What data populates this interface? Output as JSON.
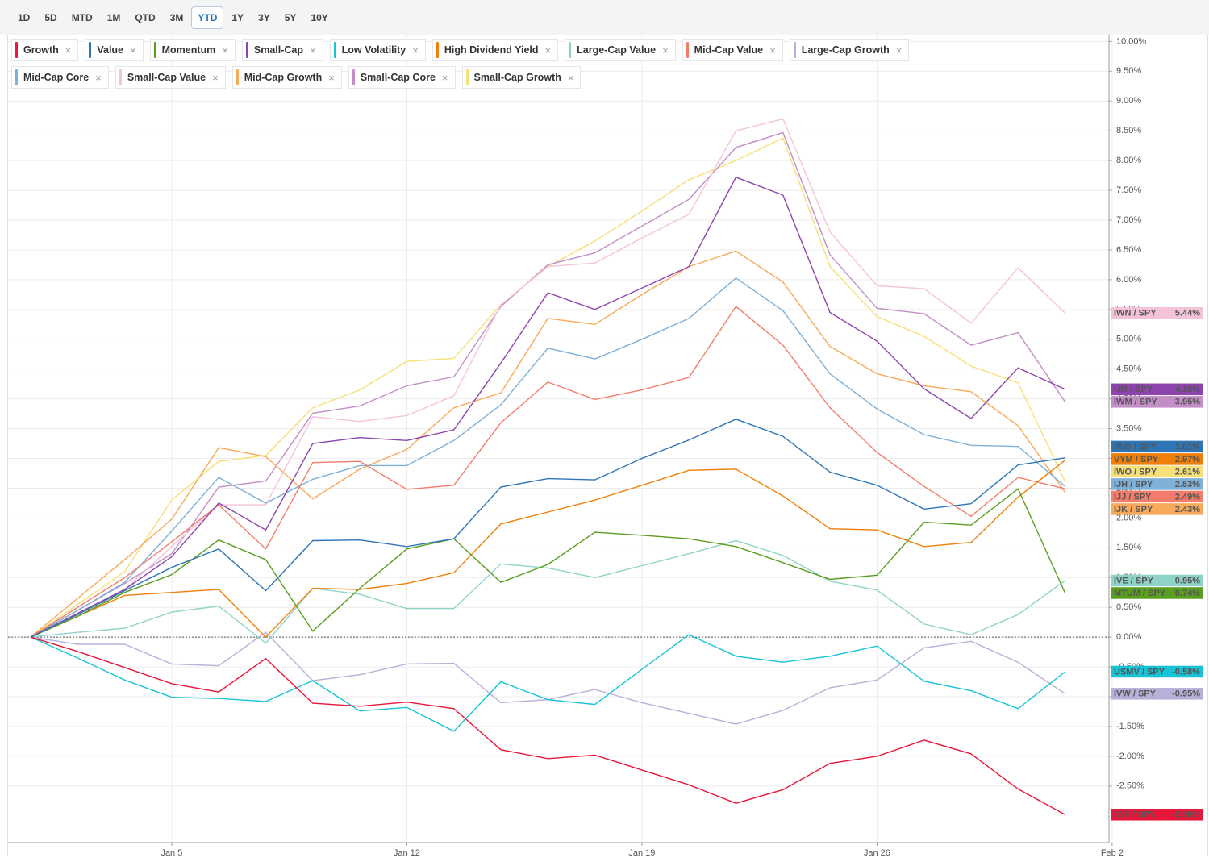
{
  "chart_data": {
    "type": "line",
    "range_buttons": [
      "1D",
      "5D",
      "MTD",
      "1M",
      "QTD",
      "3M",
      "YTD",
      "1Y",
      "3Y",
      "5Y",
      "10Y"
    ],
    "active_range": "YTD",
    "categories": [
      null,
      null,
      null,
      "Jan 5",
      null,
      null,
      null,
      null,
      "Jan 12",
      null,
      null,
      null,
      null,
      "Jan 19",
      null,
      null,
      null,
      null,
      "Jan 26",
      null,
      null,
      null,
      null,
      "Feb 2"
    ],
    "ylim": [
      -3.45,
      10.1
    ],
    "yticks": [
      {
        "value": -2.5,
        "label": "-2.50%"
      },
      {
        "value": -2,
        "label": "-2.00%"
      },
      {
        "value": -1.5,
        "label": "-1.50%"
      },
      {
        "value": -1,
        "label": "-1.00%"
      },
      {
        "value": -0.5,
        "label": "-0.50%"
      },
      {
        "value": 0,
        "label": "0.00%"
      },
      {
        "value": 0.5,
        "label": "0.50%"
      },
      {
        "value": 1,
        "label": "1.00%"
      },
      {
        "value": 1.5,
        "label": "1.50%"
      },
      {
        "value": 2,
        "label": "2.00%"
      },
      {
        "value": 2.5,
        "label": "2.50%"
      },
      {
        "value": 3,
        "label": "3.00%"
      },
      {
        "value": 3.5,
        "label": "3.50%"
      },
      {
        "value": 4,
        "label": "4.00%"
      },
      {
        "value": 4.5,
        "label": "4.50%"
      },
      {
        "value": 5,
        "label": "5.00%"
      },
      {
        "value": 5.5,
        "label": "5.50%"
      },
      {
        "value": 6,
        "label": "6.00%"
      },
      {
        "value": 6.5,
        "label": "6.50%"
      },
      {
        "value": 7,
        "label": "7.00%"
      },
      {
        "value": 7.5,
        "label": "7.50%"
      },
      {
        "value": 8,
        "label": "8.00%"
      },
      {
        "value": 8.5,
        "label": "8.50%"
      },
      {
        "value": 9,
        "label": "9.00%"
      },
      {
        "value": 9.5,
        "label": "9.50%"
      },
      {
        "value": 10,
        "label": "10.00%"
      }
    ],
    "grid": true,
    "zero_line": true,
    "series": [
      {
        "name": "Growth",
        "ticker": "IWF / SPY",
        "end_label": "-2.98%",
        "color": "#e8173a",
        "values": [
          0,
          -0.24,
          -0.51,
          -0.78,
          -0.92,
          -0.36,
          -1.11,
          -1.16,
          -1.09,
          -1.2,
          -1.89,
          -2.04,
          -1.98,
          -2.23,
          -2.48,
          -2.79,
          -2.56,
          -2.12,
          -2.0,
          -1.73,
          -1.96,
          -2.55,
          -2.98,
          null
        ]
      },
      {
        "name": "Value",
        "ticker": "IWD / SPY",
        "end_label": "3.01%",
        "color": "#2e75b6",
        "values": [
          0,
          0.38,
          0.78,
          1.17,
          1.48,
          0.78,
          1.62,
          1.63,
          1.52,
          1.65,
          2.52,
          2.66,
          2.64,
          3.0,
          3.31,
          3.66,
          3.37,
          2.77,
          2.55,
          2.15,
          2.24,
          2.89,
          3.01,
          null
        ]
      },
      {
        "name": "Momentum",
        "ticker": "MTUM / SPY",
        "end_label": "0.74%",
        "color": "#5a9e1f",
        "values": [
          0,
          0.35,
          0.75,
          1.05,
          1.63,
          1.3,
          0.1,
          0.82,
          1.48,
          1.65,
          0.92,
          1.22,
          1.76,
          1.71,
          1.65,
          1.52,
          1.25,
          0.97,
          1.04,
          1.93,
          1.88,
          2.49,
          0.74,
          null
        ]
      },
      {
        "name": "Small-Cap",
        "ticker": "IJR / SPY",
        "end_label": "4.16%",
        "color": "#8e44ad",
        "values": [
          0,
          0.4,
          0.8,
          1.35,
          2.25,
          1.8,
          3.25,
          3.35,
          3.3,
          3.48,
          4.6,
          5.78,
          5.5,
          5.86,
          6.22,
          7.72,
          7.42,
          5.45,
          4.97,
          4.17,
          3.67,
          4.52,
          4.16,
          null
        ]
      },
      {
        "name": "Low Volatility",
        "ticker": "USMV / SPY",
        "end_label": "-0.58%",
        "color": "#17c3d6",
        "values": [
          0,
          -0.35,
          -0.72,
          -1.01,
          -1.03,
          -1.08,
          -0.73,
          -1.24,
          -1.18,
          -1.58,
          -0.75,
          -1.05,
          -1.13,
          -0.54,
          0.04,
          -0.32,
          -0.42,
          -0.32,
          -0.15,
          -0.74,
          -0.9,
          -1.2,
          -0.58,
          null
        ]
      },
      {
        "name": "High Dividend Yield",
        "ticker": "VYM / SPY",
        "end_label": "2.97%",
        "color": "#f07f09",
        "values": [
          0,
          0.35,
          0.7,
          0.75,
          0.8,
          0.0,
          0.82,
          0.8,
          0.9,
          1.08,
          1.9,
          2.1,
          2.3,
          2.55,
          2.8,
          2.82,
          2.37,
          1.82,
          1.8,
          1.52,
          1.59,
          2.35,
          2.97,
          null
        ]
      },
      {
        "name": "Large-Cap Value",
        "ticker": "IVE / SPY",
        "end_label": "0.95%",
        "color": "#8fd3c8",
        "values": [
          0,
          0.08,
          0.15,
          0.42,
          0.52,
          -0.1,
          0.82,
          0.72,
          0.48,
          0.48,
          1.23,
          1.16,
          1.0,
          1.2,
          1.4,
          1.62,
          1.37,
          0.94,
          0.79,
          0.22,
          0.04,
          0.38,
          0.95,
          null
        ]
      },
      {
        "name": "Mid-Cap Value",
        "ticker": "IJJ / SPY",
        "end_label": "2.49%",
        "color": "#f47c6a",
        "values": [
          0,
          0.5,
          1.0,
          1.6,
          2.22,
          1.48,
          2.93,
          2.95,
          2.48,
          2.55,
          3.6,
          4.28,
          3.99,
          4.15,
          4.36,
          5.55,
          4.9,
          3.85,
          3.1,
          2.53,
          2.03,
          2.68,
          2.49,
          null
        ]
      },
      {
        "name": "Large-Cap Growth",
        "ticker": "IVW / SPY",
        "end_label": "-0.95%",
        "color": "#b8b0d8",
        "values": [
          0,
          -0.12,
          -0.12,
          -0.45,
          -0.48,
          0.08,
          -0.73,
          -0.63,
          -0.45,
          -0.44,
          -1.1,
          -1.05,
          -0.88,
          -1.1,
          -1.28,
          -1.46,
          -1.23,
          -0.85,
          -0.72,
          -0.18,
          -0.07,
          -0.42,
          -0.95,
          null
        ]
      },
      {
        "name": "Mid-Cap Core",
        "ticker": "IJH / SPY",
        "end_label": "2.53%",
        "color": "#7fb0d8",
        "values": [
          0,
          0.45,
          0.92,
          1.78,
          2.68,
          2.25,
          2.65,
          2.88,
          2.88,
          3.3,
          3.9,
          4.85,
          4.67,
          5.0,
          5.35,
          6.03,
          5.48,
          4.42,
          3.83,
          3.4,
          3.22,
          3.2,
          2.53,
          null
        ]
      },
      {
        "name": "Small-Cap Value",
        "ticker": "IWN / SPY",
        "end_label": "5.44%",
        "color": "#f5c3d8",
        "values": [
          0,
          0.4,
          0.8,
          1.52,
          2.22,
          2.22,
          3.7,
          3.62,
          3.72,
          4.05,
          5.58,
          6.22,
          6.28,
          6.7,
          7.1,
          8.5,
          8.7,
          6.8,
          5.9,
          5.85,
          5.27,
          6.2,
          5.44,
          null
        ]
      },
      {
        "name": "Mid-Cap Growth",
        "ticker": "IJK / SPY",
        "end_label": "2.43%",
        "color": "#f8a95a",
        "values": [
          0,
          0.65,
          1.3,
          1.98,
          3.18,
          3.03,
          2.32,
          2.82,
          3.15,
          3.85,
          4.1,
          5.35,
          5.25,
          5.75,
          6.22,
          6.48,
          5.96,
          4.88,
          4.42,
          4.22,
          4.12,
          3.55,
          2.43,
          null
        ]
      },
      {
        "name": "Small-Cap Core",
        "ticker": "IWM / SPY",
        "end_label": "3.95%",
        "color": "#c38ec7",
        "values": [
          0,
          0.45,
          0.9,
          1.4,
          2.52,
          2.62,
          3.76,
          3.88,
          4.22,
          4.37,
          5.55,
          6.25,
          6.45,
          6.9,
          7.35,
          8.22,
          8.47,
          6.42,
          5.52,
          5.43,
          4.9,
          5.11,
          3.95,
          null
        ]
      },
      {
        "name": "Small-Cap Growth",
        "ticker": "IWO / SPY",
        "end_label": "2.61%",
        "color": "#f7e07a",
        "values": [
          0,
          0.55,
          1.1,
          2.3,
          2.95,
          3.05,
          3.85,
          4.15,
          4.63,
          4.68,
          5.58,
          6.22,
          6.65,
          7.15,
          7.68,
          8.0,
          8.38,
          6.22,
          5.38,
          5.05,
          4.55,
          4.27,
          2.61,
          null
        ]
      }
    ]
  }
}
